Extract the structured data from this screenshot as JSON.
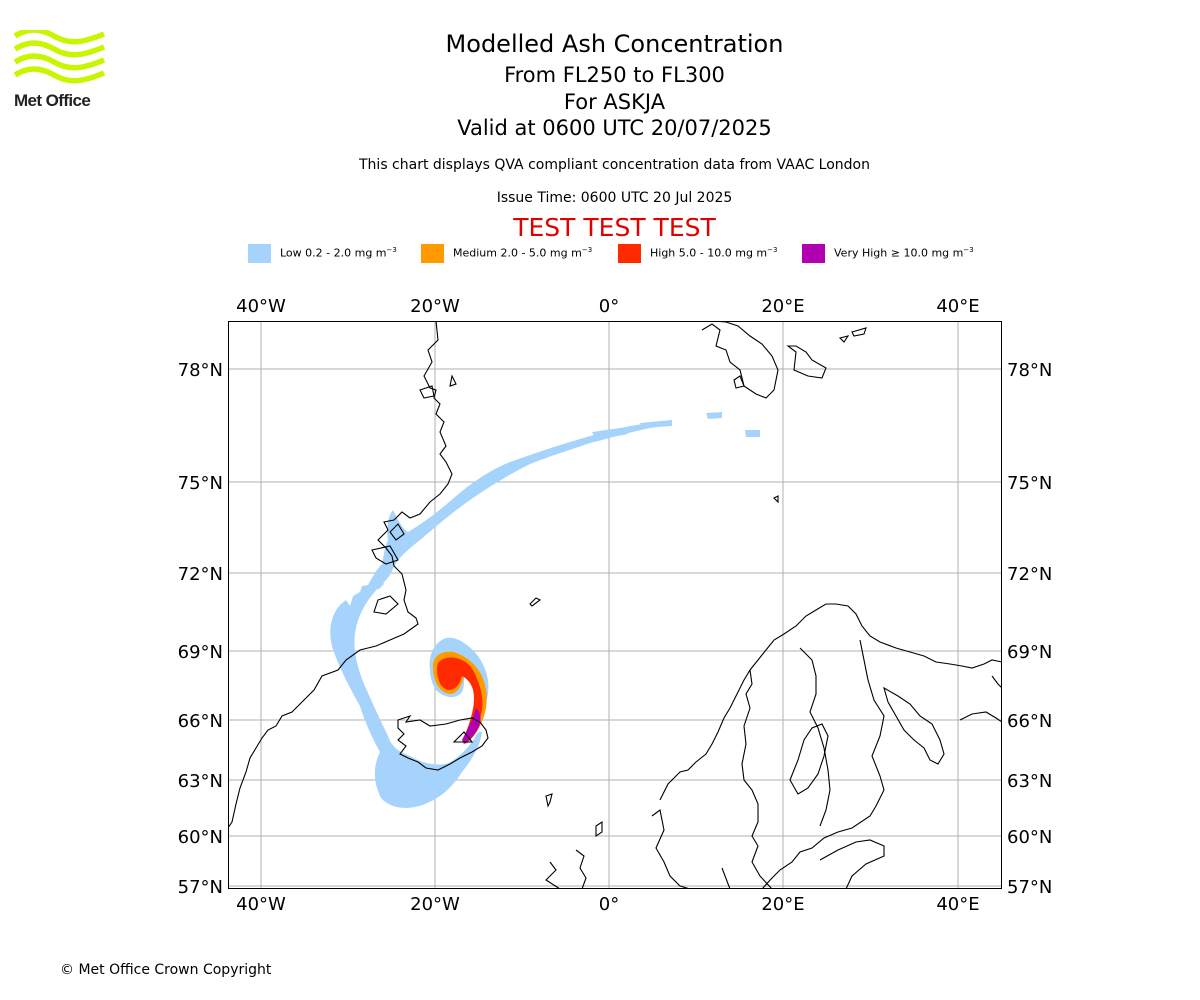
{
  "logo": {
    "text": "Met Office",
    "wave_color": "#c8f500"
  },
  "header": {
    "title": "Modelled Ash Concentration",
    "level_range": "From FL250 to FL300",
    "volcano": "For ASKJA",
    "valid_time": "Valid at 0600 UTC 20/07/2025",
    "disclaimer": "This chart displays QVA compliant concentration data from VAAC London",
    "issue_time": "Issue Time: 0600 UTC 20 Jul 2025",
    "test_banner": "TEST TEST TEST",
    "test_banner_color": "#e00000"
  },
  "legend": [
    {
      "label": "Low 0.2 - 2.0 mg m",
      "unit_exponent": "−3",
      "color": "#a6d3fb"
    },
    {
      "label": "Medium 2.0 - 5.0 mg m",
      "unit_exponent": "−3",
      "color": "#ff9a00"
    },
    {
      "label": "High 5.0 - 10.0 mg m",
      "unit_exponent": "−3",
      "color": "#ff2a00"
    },
    {
      "label": "Very High ≥ 10.0 mg m",
      "unit_exponent": "−3",
      "color": "#b000b0"
    }
  ],
  "map": {
    "longitude_labels": [
      "40°W",
      "20°W",
      "0°",
      "20°E",
      "40°E"
    ],
    "latitude_labels": [
      "78°N",
      "75°N",
      "72°N",
      "69°N",
      "66°N",
      "63°N",
      "60°N",
      "57°N"
    ],
    "gridline_color": "#b0b0b0",
    "coastline_color": "#000000"
  },
  "footer": {
    "copyright": "© Met Office Crown Copyright"
  }
}
